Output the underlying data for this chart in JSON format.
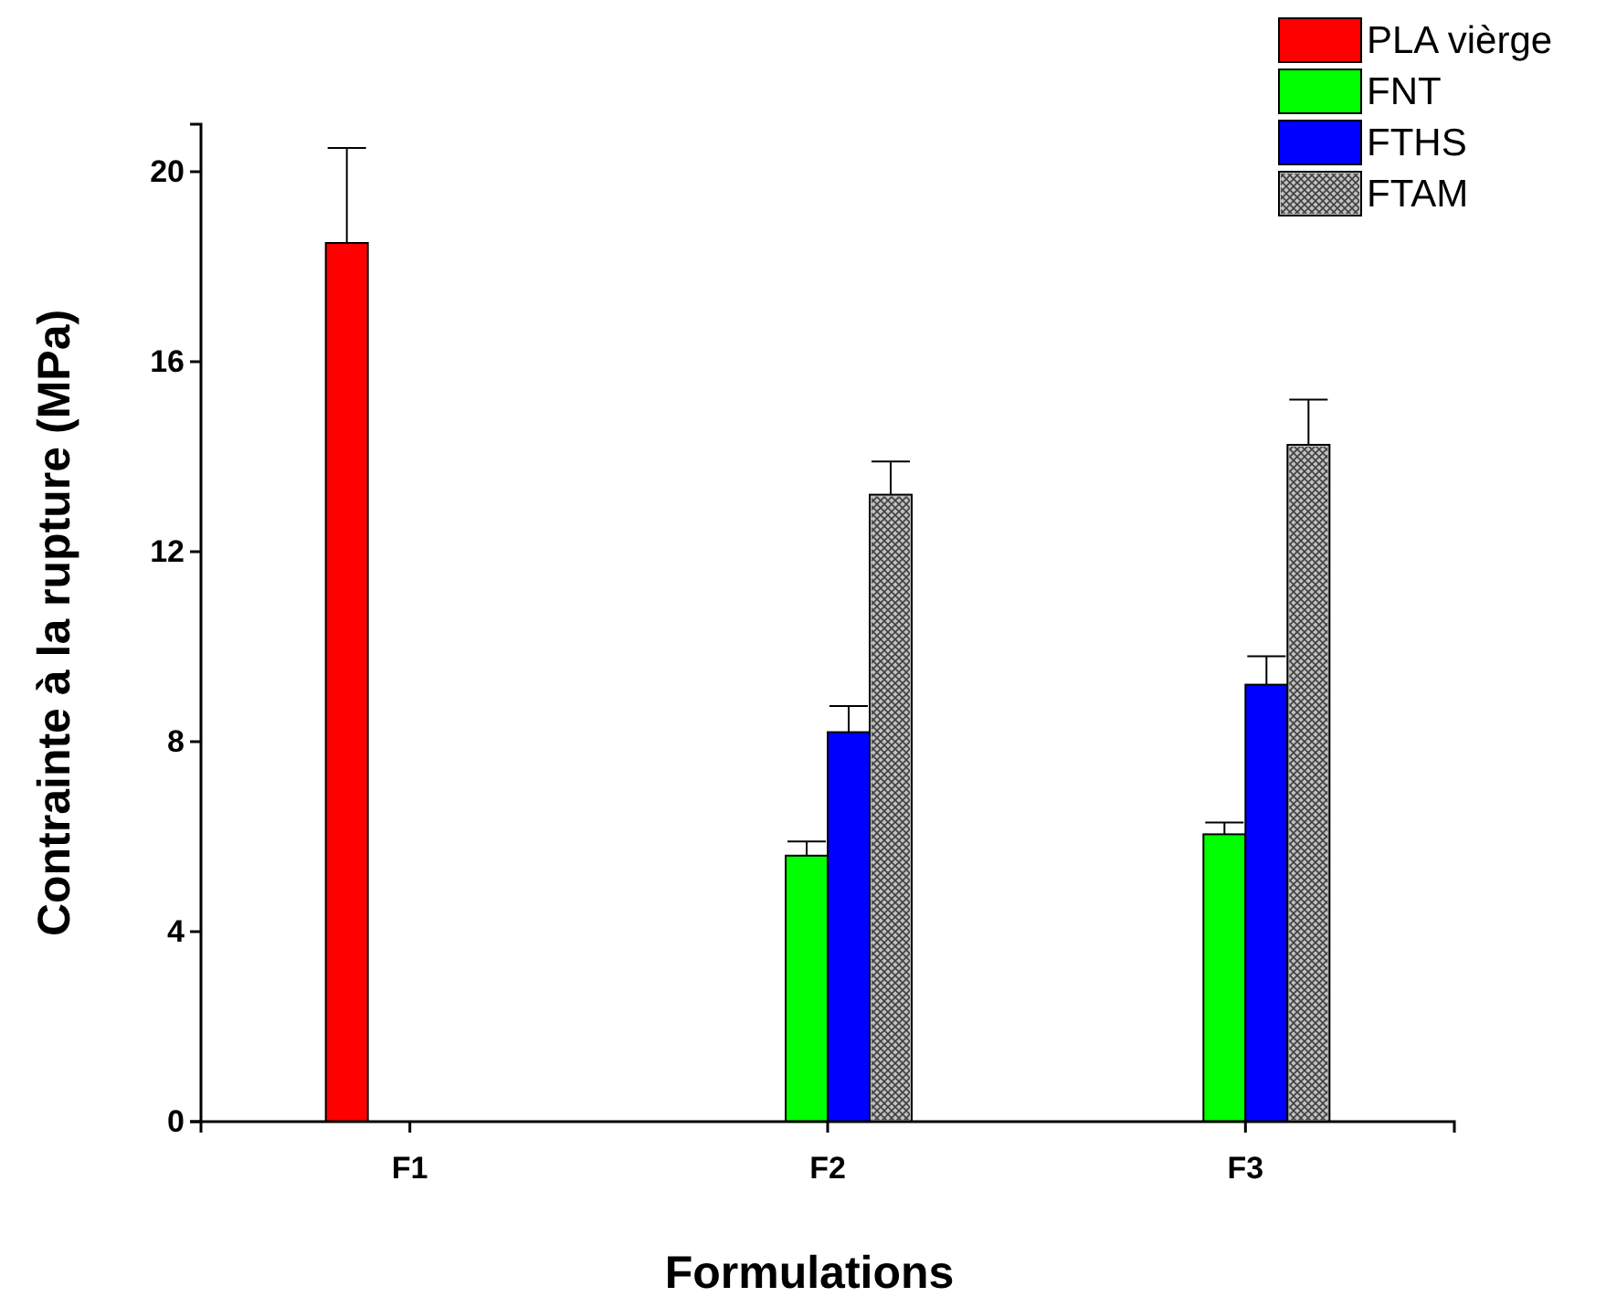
{
  "chart_data": {
    "type": "bar",
    "xlabel": "Formulations",
    "ylabel": "Contrainte à la rupture (MPa)",
    "categories": [
      "F1",
      "F2",
      "F3"
    ],
    "series": [
      {
        "name": "PLA vièrge",
        "color": "#ff0000",
        "values": [
          18.5,
          null,
          null
        ],
        "errors": [
          [
            18.5,
            20.5
          ],
          null,
          null
        ]
      },
      {
        "name": "FNT",
        "color": "#00ff00",
        "values": [
          null,
          5.6,
          6.05
        ],
        "errors": [
          null,
          [
            5.6,
            5.9
          ],
          [
            6.05,
            6.3
          ]
        ]
      },
      {
        "name": "FTHS",
        "color": "#0000ff",
        "values": [
          null,
          8.2,
          9.2
        ],
        "errors": [
          null,
          [
            8.2,
            8.75
          ],
          [
            9.2,
            9.8
          ]
        ]
      },
      {
        "name": "FTAM",
        "color": "#c0c0c0",
        "values": [
          null,
          13.2,
          14.25
        ],
        "errors": [
          null,
          [
            13.2,
            13.9
          ],
          [
            14.25,
            15.2
          ]
        ]
      }
    ],
    "ylim": [
      0,
      21
    ],
    "yticks": [
      0,
      4,
      8,
      12,
      16,
      20
    ],
    "grid": false,
    "legend": "top right"
  }
}
